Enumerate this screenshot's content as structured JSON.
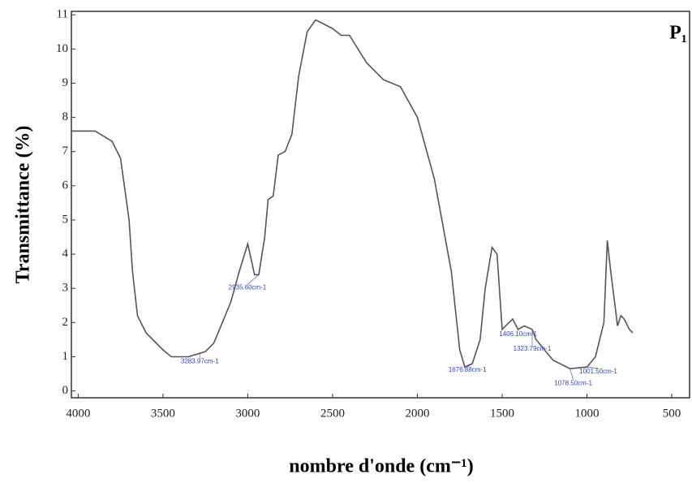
{
  "chart_data": {
    "type": "line",
    "title": "P₁",
    "xlabel": "nombre d'onde (cm⁻¹)",
    "ylabel": "Transmittance (%)",
    "color": "#555555",
    "xlim": [
      4040,
      395
    ],
    "ylim": [
      -0.2,
      11.1
    ],
    "xticks": [
      4000,
      3500,
      3000,
      2500,
      2000,
      1500,
      1000,
      500
    ],
    "yticks": [
      0,
      1,
      2,
      3,
      4,
      5,
      6,
      7,
      8,
      9,
      10,
      11
    ],
    "x": [
      4040,
      3900,
      3800,
      3750,
      3700,
      3680,
      3650,
      3600,
      3500,
      3450,
      3350,
      3283,
      3250,
      3200,
      3100,
      3050,
      3000,
      2960,
      2935,
      2900,
      2880,
      2850,
      2820,
      2780,
      2740,
      2700,
      2650,
      2600,
      2500,
      2450,
      2400,
      2300,
      2200,
      2100,
      2000,
      1900,
      1800,
      1750,
      1720,
      1676,
      1630,
      1600,
      1560,
      1530,
      1500,
      1460,
      1438,
      1406,
      1370,
      1323,
      1300,
      1200,
      1100,
      1000,
      950,
      900,
      880,
      860,
      820,
      800,
      780,
      750,
      730
    ],
    "values": [
      7.6,
      7.6,
      7.3,
      6.8,
      5.0,
      3.5,
      2.2,
      1.7,
      1.2,
      1.0,
      1.0,
      1.1,
      1.15,
      1.4,
      2.6,
      3.5,
      4.3,
      3.4,
      3.4,
      4.5,
      5.6,
      5.7,
      6.9,
      7.0,
      7.5,
      9.2,
      10.5,
      10.85,
      10.6,
      10.4,
      10.4,
      9.6,
      9.1,
      8.9,
      8.0,
      6.2,
      3.5,
      1.2,
      0.7,
      0.8,
      1.5,
      3.0,
      4.2,
      4.0,
      1.8,
      2.0,
      2.1,
      1.8,
      1.9,
      1.8,
      1.5,
      0.9,
      0.65,
      0.7,
      1.0,
      2.0,
      4.4,
      3.5,
      1.9,
      2.2,
      2.1,
      1.8,
      1.7
    ],
    "annotations": [
      {
        "text": "3283.97cm-1",
        "x": 3283
      },
      {
        "text": "2935.60cm-1",
        "x": 2935
      },
      {
        "text": "1676.88cm-1",
        "x": 1676
      },
      {
        "text": "1406.10cm-1",
        "x": 1406
      },
      {
        "text": "1323.79cm-1",
        "x": 1323
      },
      {
        "text": "1078.50cm-1",
        "x": 1100
      },
      {
        "text": "1001.50cm-1",
        "x": 1000
      }
    ]
  }
}
